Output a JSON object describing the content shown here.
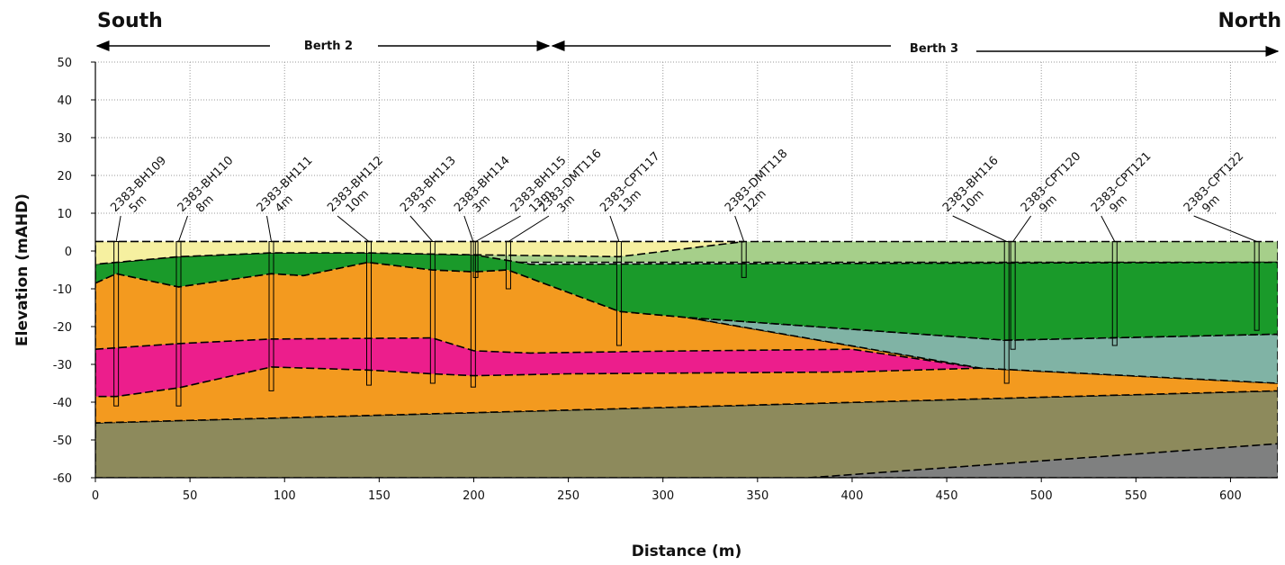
{
  "chart_data": {
    "type": "cross-section",
    "left_label": "South",
    "right_label": "North",
    "sections": [
      "Berth 2",
      "Berth 3"
    ],
    "xlabel": "Distance (m)",
    "ylabel": "Elevation (mAHD)",
    "xlim": [
      0,
      625
    ],
    "ylim": [
      -60,
      50
    ],
    "xticks": [
      0,
      50,
      100,
      150,
      200,
      250,
      300,
      350,
      400,
      450,
      500,
      550,
      600
    ],
    "yticks": [
      -60,
      -50,
      -40,
      -30,
      -20,
      -10,
      0,
      10,
      20,
      30,
      40,
      50
    ],
    "grid": true,
    "layers": [
      {
        "color": "#8d8a5c",
        "x": [
          0,
          625,
          625,
          0
        ],
        "y": [
          -45.5,
          -37,
          -60,
          -60
        ]
      },
      {
        "color": "#7f8080",
        "x": [
          377,
          625,
          625
        ],
        "y": [
          -60,
          -51,
          -60
        ]
      },
      {
        "color": "#f39a1f",
        "x": [
          0,
          11,
          44,
          93,
          110,
          144,
          178,
          200,
          218,
          277,
          313,
          468,
          625,
          625,
          0
        ],
        "y": [
          -8.5,
          -6,
          -9.5,
          -6,
          -6.5,
          -3,
          -5,
          -5.5,
          -5,
          -16,
          -17.6,
          -31,
          -35,
          -37,
          -45.5
        ]
      },
      {
        "color": "#ec1e8c",
        "x": [
          0,
          44,
          93,
          178,
          200,
          230,
          300,
          400,
          468,
          400,
          250,
          200,
          178,
          144,
          93,
          44,
          11,
          0
        ],
        "y": [
          -26,
          -24.5,
          -23.3,
          -23,
          -26.4,
          -27,
          -26.5,
          -26,
          -31,
          -32,
          -32.5,
          -33,
          -32.5,
          -31.5,
          -30.7,
          -36.2,
          -38.5,
          -38.5
        ]
      },
      {
        "color": "#80b3a5",
        "x": [
          313,
          481,
          625,
          625,
          468
        ],
        "y": [
          -17.6,
          -23.6,
          -22,
          -35,
          -31
        ]
      },
      {
        "color": "#a6cf8a",
        "x": [
          0,
          625,
          625,
          0
        ],
        "y": [
          2.5,
          2.5,
          -3,
          -3
        ]
      },
      {
        "color": "#1a9a2a",
        "x": [
          0,
          44,
          93,
          144,
          200,
          230,
          625,
          625,
          481,
          313,
          277,
          218,
          200,
          178,
          144,
          110,
          93,
          44,
          11,
          0
        ],
        "y": [
          -3.5,
          -1.5,
          -0.5,
          -0.5,
          -1,
          -3.5,
          -3,
          -22,
          -23.6,
          -17.6,
          -16,
          -5,
          -5.5,
          -5,
          -3,
          -6.5,
          -6,
          -9.5,
          -6,
          -8.5
        ]
      },
      {
        "color": "#f6f0a0",
        "x": [
          0,
          343,
          277,
          200,
          144,
          93,
          44,
          0
        ],
        "y": [
          2.5,
          2.5,
          -1.5,
          -1,
          -0.5,
          -0.5,
          -1.5,
          -3.5
        ]
      }
    ],
    "boreholes": [
      {
        "name": "2383-BH109",
        "depth": "5m",
        "x": 11,
        "top": 2.5,
        "bottom": -41
      },
      {
        "name": "2383-BH110",
        "depth": "8m",
        "x": 44,
        "top": 2.5,
        "bottom": -41
      },
      {
        "name": "2383-BH111",
        "depth": "4m",
        "x": 93,
        "top": 2.5,
        "bottom": -37
      },
      {
        "name": "2383-BH112",
        "depth": "10m",
        "x": 144.6,
        "top": 2.5,
        "bottom": -35.5
      },
      {
        "name": "2383-BH113",
        "depth": "3m",
        "x": 178.3,
        "top": 2.5,
        "bottom": -35
      },
      {
        "name": "2383-BH114",
        "depth": "3m",
        "x": 199.7,
        "top": 2.5,
        "bottom": -36
      },
      {
        "name": "2383-BH115",
        "depth": "13m",
        "x": 201,
        "top": 2.5,
        "bottom": -7
      },
      {
        "name": "2383-DMT116",
        "depth": "3m",
        "x": 218.3,
        "top": 2.5,
        "bottom": -10
      },
      {
        "name": "2383-CPT117",
        "depth": "13m",
        "x": 276.8,
        "top": 2.5,
        "bottom": -25
      },
      {
        "name": "2383-DMT118",
        "depth": "12m",
        "x": 342.8,
        "top": 2.5,
        "bottom": -7
      },
      {
        "name": "2383-BH116",
        "depth": "10m",
        "x": 481.7,
        "top": 2.5,
        "bottom": -35
      },
      {
        "name": "2383-CPT120",
        "depth": "9m",
        "x": 485,
        "top": 2.5,
        "bottom": -26
      },
      {
        "name": "2383-CPT121",
        "depth": "9m",
        "x": 538.8,
        "top": 2.5,
        "bottom": -25
      },
      {
        "name": "2383-CPT122",
        "depth": "9m",
        "x": 613.9,
        "top": 2.5,
        "bottom": -21
      }
    ]
  }
}
